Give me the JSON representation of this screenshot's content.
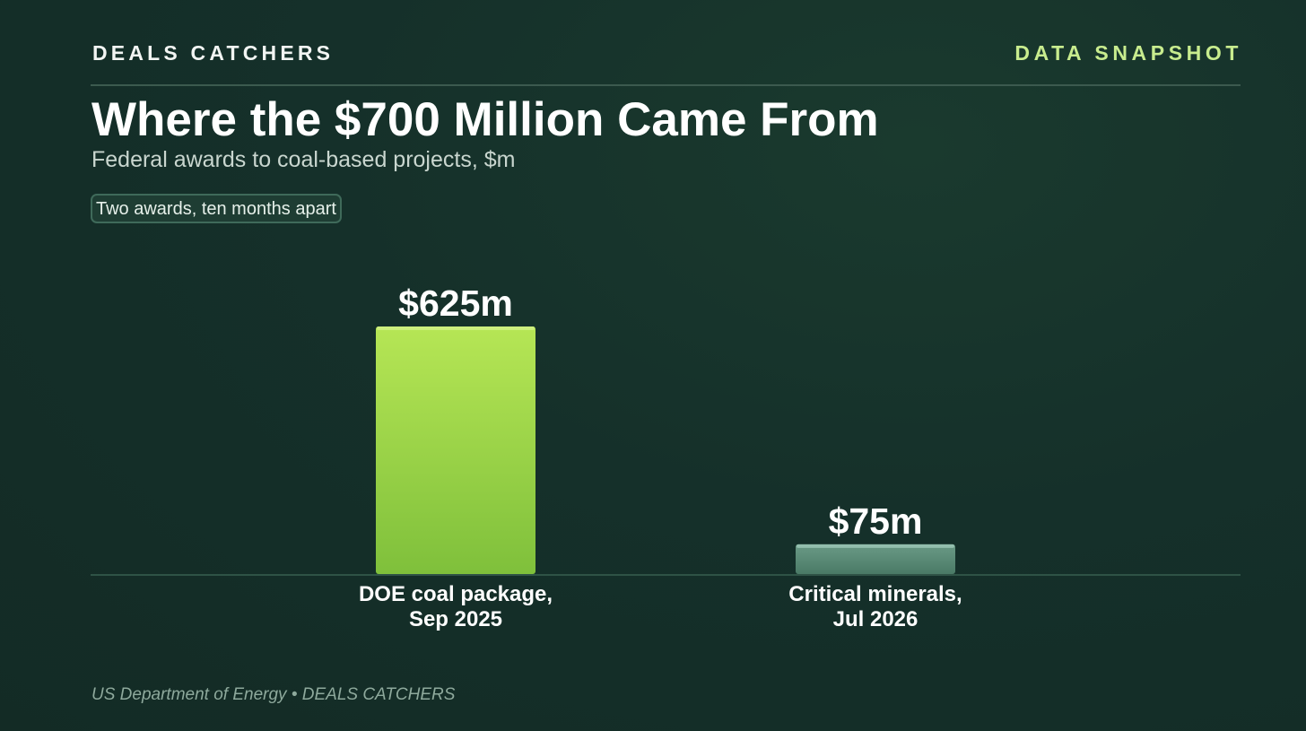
{
  "header": {
    "brand": "DEALS CATCHERS",
    "kicker": "DATA SNAPSHOT"
  },
  "title": "Where the $700 Million Came From",
  "subtitle": "Federal awards to coal-based projects, $m",
  "tag": "Two awards, ten months apart",
  "footer": {
    "source": "US Department of Energy • DEALS CATCHERS"
  },
  "colors": {
    "background": "#15302a",
    "accent": "#c8ec8e",
    "bar_primary_top": "#b6e655",
    "bar_primary_bottom": "#7fc03b",
    "bar_secondary_top": "#6a9a86",
    "bar_secondary_bottom": "#4a7a66"
  },
  "chart_data": {
    "type": "bar",
    "title": "Where the $700 Million Came From",
    "subtitle": "Federal awards to coal-based projects, $m",
    "xlabel": "",
    "ylabel": "",
    "ylim": [
      0,
      700
    ],
    "grid": false,
    "categories": [
      [
        "DOE coal package,",
        "Sep 2025"
      ],
      [
        "Critical minerals,",
        "Jul 2026"
      ]
    ],
    "values": [
      625,
      75
    ],
    "data_labels": [
      "$625m",
      "$75m"
    ],
    "unit": "$m"
  }
}
